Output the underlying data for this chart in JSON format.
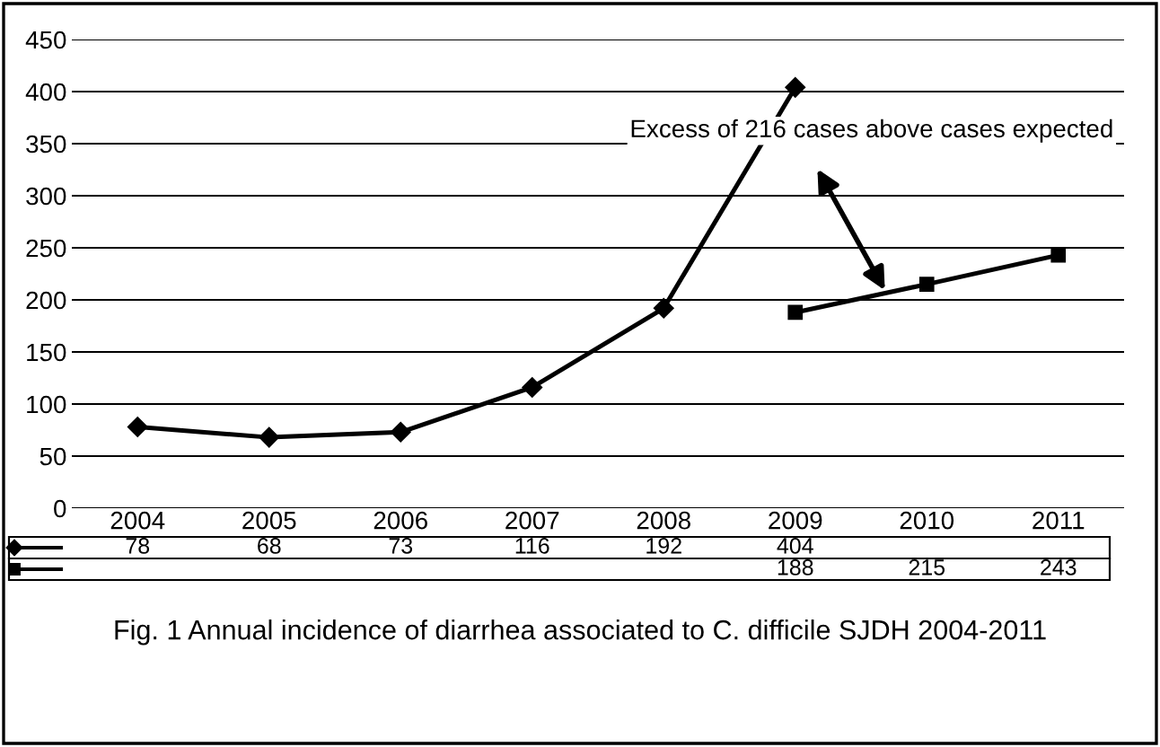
{
  "chart_data": {
    "type": "line",
    "title": "Fig. 1 Annual incidence of diarrhea associated to C. difficile SJDH 2004-2011",
    "categories": [
      "2004",
      "2005",
      "2006",
      "2007",
      "2008",
      "2009",
      "2010",
      "2011"
    ],
    "series": [
      {
        "color": "#000000",
        "marker": "diamond",
        "values": [
          78,
          68,
          73,
          116,
          192,
          404,
          null,
          null
        ]
      },
      {
        "color": "#000000",
        "marker": "square",
        "values": [
          null,
          null,
          null,
          null,
          null,
          188,
          215,
          243
        ]
      }
    ],
    "ylim": [
      0,
      450
    ],
    "yticks": [
      0,
      50,
      100,
      150,
      200,
      250,
      300,
      350,
      400,
      450
    ],
    "grid": "y",
    "data_labels": true,
    "line_style": "solid",
    "annotations": [
      "Excess of 216 cases above cases expected"
    ]
  }
}
